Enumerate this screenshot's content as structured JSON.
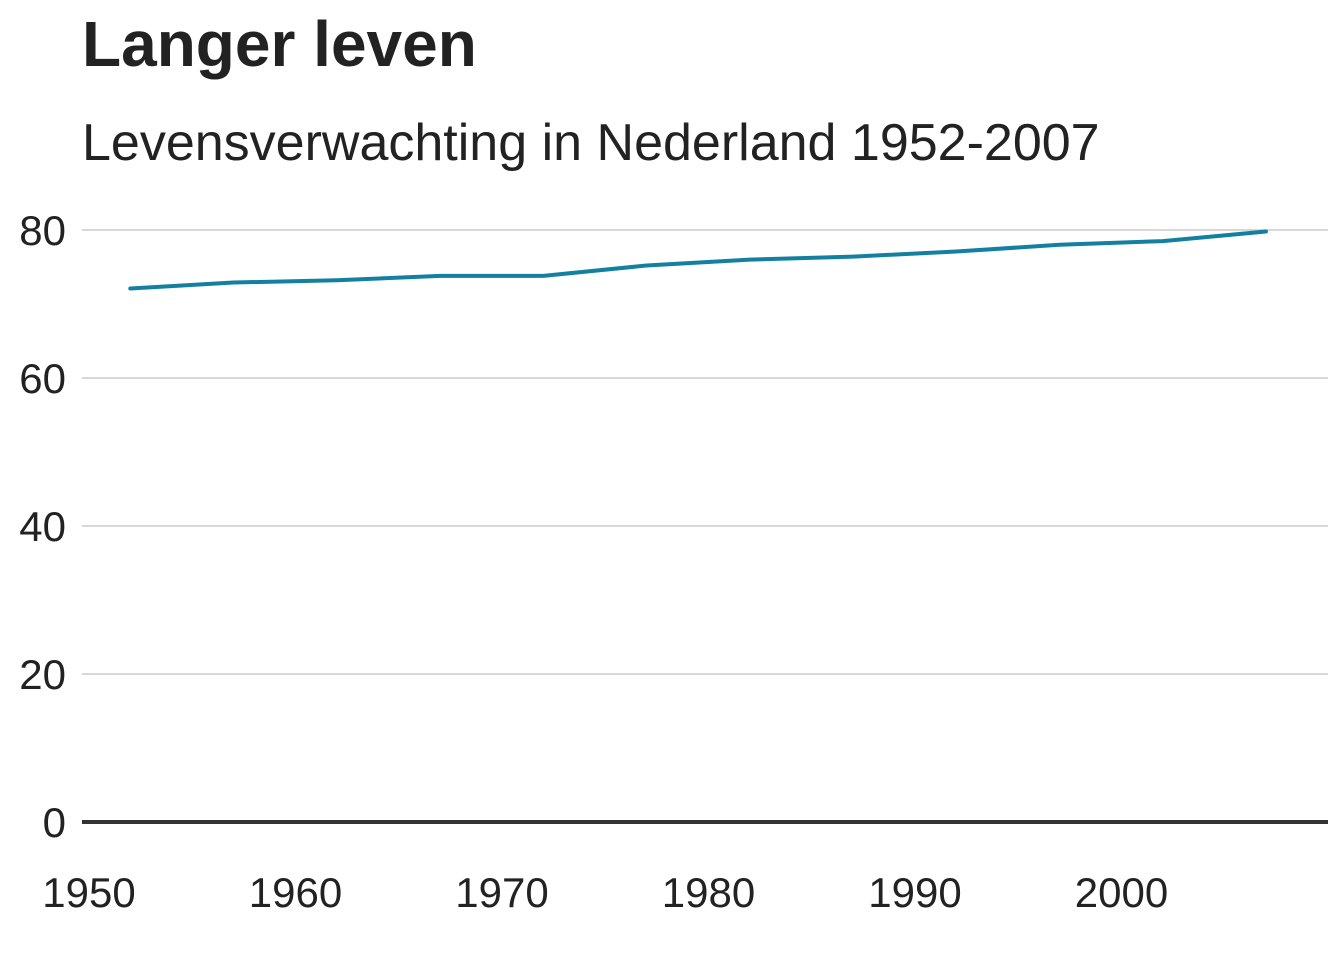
{
  "chart_data": {
    "type": "line",
    "title": "Langer leven",
    "subtitle": "Levensverwachting in Nederland 1952-2007",
    "xlabel": "",
    "ylabel": "",
    "xlim": [
      1950,
      2010
    ],
    "ylim": [
      0,
      85
    ],
    "x_ticks": [
      1950,
      1960,
      1970,
      1980,
      1990,
      2000
    ],
    "y_ticks": [
      0,
      20,
      40,
      60,
      80
    ],
    "grid": true,
    "legend": "none",
    "series": [
      {
        "color": "#1380A1",
        "points": [
          {
            "x": 1952,
            "y": 72.1
          },
          {
            "x": 1957,
            "y": 72.9
          },
          {
            "x": 1962,
            "y": 73.2
          },
          {
            "x": 1967,
            "y": 73.8
          },
          {
            "x": 1972,
            "y": 73.8
          },
          {
            "x": 1977,
            "y": 75.2
          },
          {
            "x": 1982,
            "y": 76.0
          },
          {
            "x": 1987,
            "y": 76.4
          },
          {
            "x": 1992,
            "y": 77.1
          },
          {
            "x": 1997,
            "y": 78.0
          },
          {
            "x": 2002,
            "y": 78.5
          },
          {
            "x": 2007,
            "y": 79.8
          }
        ]
      }
    ]
  },
  "colors": {
    "gridline": "#cbcbcb",
    "baseline": "#333333",
    "text": "#222222"
  }
}
